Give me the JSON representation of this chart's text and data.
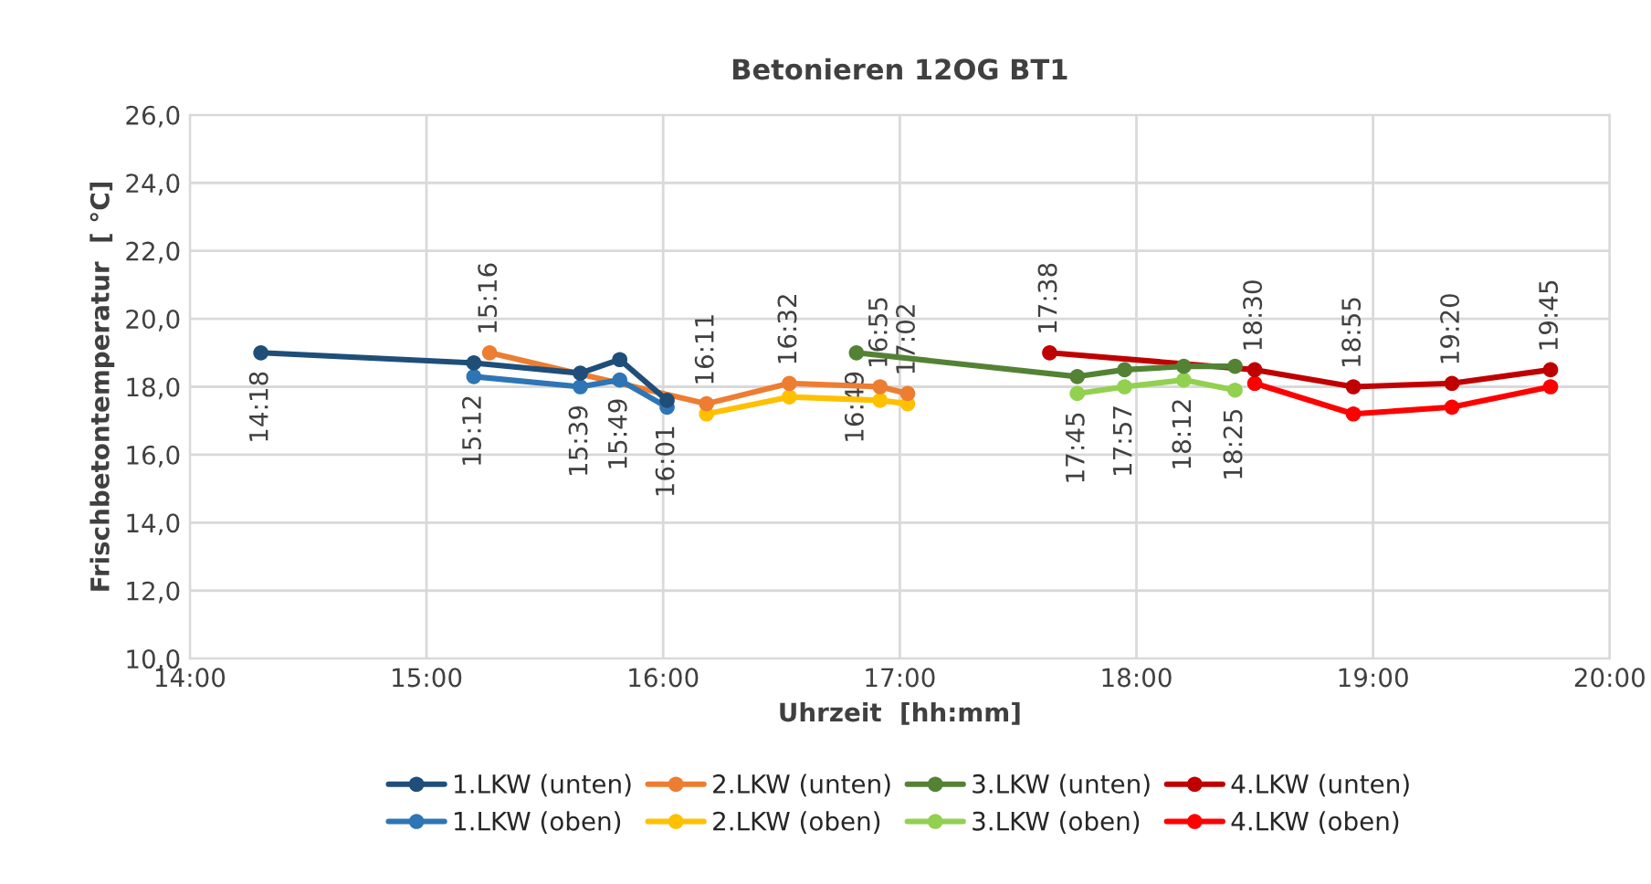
{
  "chart_data": {
    "type": "line",
    "title": "Betonieren 12OG BT1",
    "xlabel": "Uhrzeit  [hh:mm]",
    "ylabel": "Frischbetontemperatur  [ °C]",
    "xlim": [
      14,
      20
    ],
    "xticks": [
      {
        "value": 14,
        "label": "14:00"
      },
      {
        "value": 15,
        "label": "15:00"
      },
      {
        "value": 16,
        "label": "16:00"
      },
      {
        "value": 17,
        "label": "17:00"
      },
      {
        "value": 18,
        "label": "18:00"
      },
      {
        "value": 19,
        "label": "19:00"
      },
      {
        "value": 20,
        "label": "20:00"
      }
    ],
    "ylim": [
      10,
      26
    ],
    "yticks": [
      {
        "value": 10,
        "label": "10,0"
      },
      {
        "value": 12,
        "label": "12,0"
      },
      {
        "value": 14,
        "label": "14,0"
      },
      {
        "value": 16,
        "label": "16,0"
      },
      {
        "value": 18,
        "label": "18,0"
      },
      {
        "value": 20,
        "label": "20,0"
      },
      {
        "value": 22,
        "label": "22,0"
      },
      {
        "value": 24,
        "label": "24,0"
      },
      {
        "value": 26,
        "label": "26,0"
      }
    ],
    "grid": true,
    "legend": "bottom",
    "marker": "circle",
    "line_style": "solid",
    "series": [
      {
        "name": "1.LKW (unten)",
        "color": "#1f4e79",
        "x": [
          14.3,
          15.2,
          15.65,
          15.8167,
          16.0167
        ],
        "values": [
          19.0,
          18.7,
          18.4,
          18.8,
          17.6
        ]
      },
      {
        "name": "1.LKW (oben)",
        "color": "#2e75b6",
        "x": [
          15.2,
          15.65,
          15.8167,
          16.0167
        ],
        "values": [
          18.3,
          18.0,
          18.2,
          17.4
        ]
      },
      {
        "name": "2.LKW (unten)",
        "color": "#ed7d31",
        "x": [
          15.2667,
          16.1833,
          16.5333,
          16.9167,
          17.0333
        ],
        "values": [
          19.0,
          17.5,
          18.1,
          18.0,
          17.8
        ]
      },
      {
        "name": "2.LKW (oben)",
        "color": "#ffc000",
        "x": [
          16.1833,
          16.5333,
          16.9167,
          17.0333
        ],
        "values": [
          17.2,
          17.7,
          17.6,
          17.5
        ]
      },
      {
        "name": "3.LKW (unten)",
        "color": "#548235",
        "x": [
          16.8167,
          17.75,
          17.95,
          18.2,
          18.4167
        ],
        "values": [
          19.0,
          18.3,
          18.5,
          18.6,
          18.6
        ]
      },
      {
        "name": "3.LKW (oben)",
        "color": "#92d050",
        "x": [
          17.75,
          17.95,
          18.2,
          18.4167
        ],
        "values": [
          17.8,
          18.0,
          18.2,
          17.9
        ]
      },
      {
        "name": "4.LKW (unten)",
        "color": "#c00000",
        "x": [
          17.6333,
          18.5,
          18.9167,
          19.3333,
          19.75
        ],
        "values": [
          19.0,
          18.5,
          18.0,
          18.1,
          18.5
        ]
      },
      {
        "name": "4.LKW (oben)",
        "color": "#ff0000",
        "x": [
          18.5,
          18.9167,
          19.3333,
          19.75
        ],
        "values": [
          18.1,
          17.2,
          17.4,
          18.0
        ]
      }
    ],
    "annotations": [
      {
        "text": "14:18",
        "x": 14.3,
        "y": 19.0
      },
      {
        "text": "15:12",
        "x": 15.2,
        "y": 18.3
      },
      {
        "text": "15:16",
        "x": 15.2667,
        "y": 19.0
      },
      {
        "text": "15:39",
        "x": 15.65,
        "y": 18.0
      },
      {
        "text": "15:49",
        "x": 15.8167,
        "y": 18.2
      },
      {
        "text": "16:01",
        "x": 16.0167,
        "y": 17.4
      },
      {
        "text": "16:11",
        "x": 16.1833,
        "y": 17.5
      },
      {
        "text": "16:32",
        "x": 16.5333,
        "y": 18.1
      },
      {
        "text": "16:49",
        "x": 16.8167,
        "y": 19.0
      },
      {
        "text": "16:55",
        "x": 16.9167,
        "y": 18.0
      },
      {
        "text": "17:02",
        "x": 17.0333,
        "y": 17.8
      },
      {
        "text": "17:38",
        "x": 17.6333,
        "y": 19.0
      },
      {
        "text": "17:45",
        "x": 17.75,
        "y": 17.8
      },
      {
        "text": "17:57",
        "x": 17.95,
        "y": 18.0
      },
      {
        "text": "18:12",
        "x": 18.2,
        "y": 18.2
      },
      {
        "text": "18:25",
        "x": 18.4167,
        "y": 17.9
      },
      {
        "text": "18:30",
        "x": 18.5,
        "y": 18.5
      },
      {
        "text": "18:55",
        "x": 18.9167,
        "y": 18.0
      },
      {
        "text": "19:20",
        "x": 19.3333,
        "y": 18.1
      },
      {
        "text": "19:45",
        "x": 19.75,
        "y": 18.5
      }
    ]
  }
}
